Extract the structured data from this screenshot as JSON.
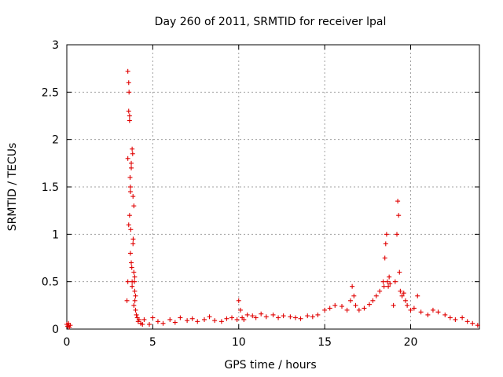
{
  "chart_data": {
    "type": "scatter",
    "title": "Day 260 of 2011, SRMTID for receiver lpal",
    "xlabel": "GPS time / hours",
    "ylabel": "SRMTID / TECUs",
    "xlim": [
      0,
      24
    ],
    "ylim": [
      0,
      3
    ],
    "xticks": [
      0,
      5,
      10,
      15,
      20
    ],
    "yticks": [
      0,
      0.5,
      1,
      1.5,
      2,
      2.5,
      3
    ],
    "xtick_labels": [
      "0",
      "5",
      "10",
      "15",
      "20"
    ],
    "ytick_labels": [
      "0",
      "0.5",
      "1",
      "1.5",
      "2",
      "2.5",
      "3"
    ],
    "grid": true,
    "marker": "+",
    "color": "#e00000",
    "series": [
      {
        "name": "SRMTID",
        "x": [
          0.0,
          0.05,
          0.1,
          0.15,
          0.2,
          3.5,
          3.55,
          3.55,
          3.6,
          3.6,
          3.65,
          3.65,
          3.7,
          3.7,
          3.75,
          3.75,
          3.8,
          3.8,
          3.85,
          3.85,
          3.9,
          3.9,
          3.95,
          3.95,
          4.0,
          4.0,
          4.05,
          4.1,
          4.15,
          4.2,
          4.3,
          4.4,
          3.55,
          3.6,
          3.62,
          3.65,
          3.68,
          3.7,
          3.72,
          3.75,
          3.78,
          3.8,
          3.83,
          3.86,
          3.9,
          3.93,
          3.96,
          4.5,
          4.8,
          5.0,
          5.3,
          5.6,
          6.0,
          6.3,
          6.6,
          7.0,
          7.3,
          7.6,
          8.0,
          8.3,
          8.6,
          9.0,
          9.3,
          9.6,
          9.9,
          10.0,
          10.1,
          10.2,
          10.3,
          10.5,
          10.8,
          11.0,
          11.3,
          11.6,
          12.0,
          12.3,
          12.6,
          13.0,
          13.3,
          13.6,
          14.0,
          14.3,
          14.6,
          15.0,
          15.3,
          15.6,
          16.0,
          16.3,
          16.5,
          16.6,
          16.7,
          16.8,
          17.0,
          17.3,
          17.6,
          17.8,
          18.0,
          18.2,
          18.4,
          18.45,
          18.5,
          18.55,
          18.6,
          18.65,
          18.7,
          18.75,
          18.8,
          19.0,
          19.1,
          19.2,
          19.25,
          19.3,
          19.35,
          19.4,
          19.5,
          19.6,
          19.7,
          19.8,
          20.0,
          20.2,
          20.4,
          20.6,
          21.0,
          21.3,
          21.6,
          22.0,
          22.3,
          22.6,
          23.0,
          23.3,
          23.6,
          23.9
        ],
        "y": [
          0.05,
          0.03,
          0.06,
          0.02,
          0.04,
          0.3,
          1.8,
          2.72,
          2.6,
          2.3,
          2.2,
          1.2,
          1.5,
          0.8,
          1.7,
          0.7,
          1.9,
          0.5,
          1.4,
          0.9,
          1.3,
          0.6,
          0.55,
          0.4,
          0.35,
          0.2,
          0.15,
          0.12,
          0.08,
          0.1,
          0.06,
          0.05,
          0.5,
          1.1,
          2.5,
          2.25,
          1.6,
          1.45,
          1.05,
          1.75,
          0.65,
          0.45,
          1.85,
          0.95,
          0.25,
          0.5,
          0.3,
          0.1,
          0.05,
          0.12,
          0.08,
          0.06,
          0.1,
          0.07,
          0.12,
          0.09,
          0.11,
          0.08,
          0.1,
          0.13,
          0.09,
          0.08,
          0.11,
          0.12,
          0.1,
          0.3,
          0.2,
          0.12,
          0.1,
          0.15,
          0.14,
          0.12,
          0.16,
          0.13,
          0.15,
          0.12,
          0.14,
          0.13,
          0.12,
          0.11,
          0.14,
          0.13,
          0.15,
          0.2,
          0.22,
          0.25,
          0.24,
          0.2,
          0.3,
          0.45,
          0.35,
          0.25,
          0.2,
          0.22,
          0.26,
          0.3,
          0.35,
          0.4,
          0.5,
          0.45,
          0.75,
          0.9,
          1.0,
          0.5,
          0.45,
          0.55,
          0.48,
          0.25,
          0.5,
          1.0,
          1.35,
          1.2,
          0.6,
          0.4,
          0.35,
          0.38,
          0.3,
          0.25,
          0.2,
          0.22,
          0.35,
          0.18,
          0.15,
          0.2,
          0.18,
          0.15,
          0.12,
          0.1,
          0.12,
          0.08,
          0.06,
          0.04
        ]
      }
    ]
  }
}
